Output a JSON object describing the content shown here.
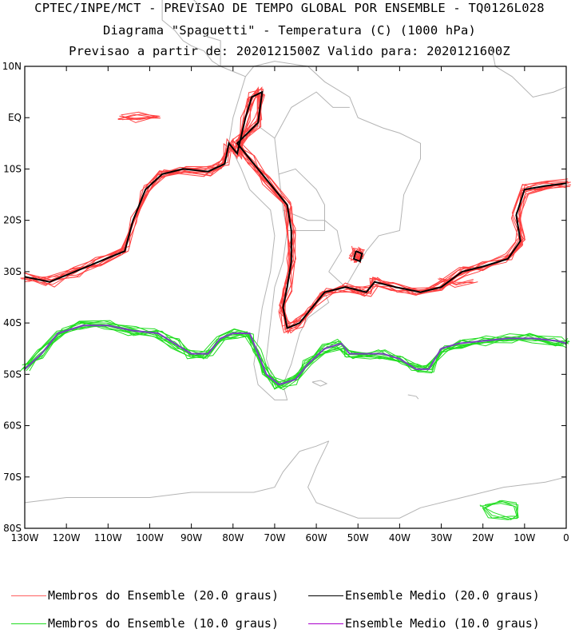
{
  "titles": {
    "line1": "CPTEC/INPE/MCT - PREVISAO DE TEMPO GLOBAL POR ENSEMBLE - TQ0126L028",
    "line2": "Diagrama \"Spaguetti\" - Temperatura (C) (1000 hPa)",
    "line3": "Previsao a partir de: 2020121500Z  Valido para: 2020121600Z"
  },
  "map": {
    "projection": "lat-lon",
    "lon_range": [
      -130,
      0
    ],
    "lat_range": [
      -80,
      10
    ],
    "lat_ticks": [
      {
        "value": 10,
        "label": "10N"
      },
      {
        "value": 0,
        "label": "EQ"
      },
      {
        "value": -10,
        "label": "10S"
      },
      {
        "value": -20,
        "label": "20S"
      },
      {
        "value": -30,
        "label": "30S"
      },
      {
        "value": -40,
        "label": "40S"
      },
      {
        "value": -50,
        "label": "50S"
      },
      {
        "value": -60,
        "label": "60S"
      },
      {
        "value": -70,
        "label": "70S"
      },
      {
        "value": -80,
        "label": "80S"
      }
    ],
    "lon_ticks": [
      {
        "value": -130,
        "label": "130W"
      },
      {
        "value": -120,
        "label": "120W"
      },
      {
        "value": -110,
        "label": "110W"
      },
      {
        "value": -100,
        "label": "100W"
      },
      {
        "value": -90,
        "label": "90W"
      },
      {
        "value": -80,
        "label": "80W"
      },
      {
        "value": -70,
        "label": "70W"
      },
      {
        "value": -60,
        "label": "60W"
      },
      {
        "value": -50,
        "label": "50W"
      },
      {
        "value": -40,
        "label": "40W"
      },
      {
        "value": -30,
        "label": "30W"
      },
      {
        "value": -20,
        "label": "20W"
      },
      {
        "value": -10,
        "label": "10W"
      },
      {
        "value": 0,
        "label": "0"
      }
    ],
    "coastline_color": "#b4b4b4",
    "contours": [
      {
        "name": "isotherm-20",
        "member_color": "#ff4040",
        "mean_color": "#000000",
        "members": 11,
        "segments": [
          [
            [
              -130,
              -31
            ],
            [
              -124,
              -32
            ],
            [
              -118,
              -30
            ],
            [
              -112,
              -28
            ],
            [
              -106,
              -26
            ],
            [
              -104,
              -20
            ],
            [
              -101,
              -14
            ],
            [
              -97,
              -11
            ],
            [
              -92,
              -10
            ],
            [
              -86,
              -10.5
            ],
            [
              -82,
              -9
            ],
            [
              -81,
              -5
            ],
            [
              -79,
              -7
            ],
            [
              -77,
              0
            ],
            [
              -75.5,
              4
            ],
            [
              -73,
              5
            ],
            [
              -74,
              -1
            ],
            [
              -79,
              -5
            ],
            [
              -76,
              -8
            ],
            [
              -72,
              -12
            ],
            [
              -67,
              -17
            ],
            [
              -66,
              -22
            ],
            [
              -66,
              -28
            ],
            [
              -67,
              -33
            ],
            [
              -68,
              -37
            ],
            [
              -67,
              -41
            ],
            [
              -64,
              -40
            ],
            [
              -61,
              -37
            ],
            [
              -58,
              -34
            ],
            [
              -53,
              -33
            ],
            [
              -48,
              -34
            ],
            [
              -46,
              -32
            ],
            [
              -41,
              -33
            ],
            [
              -35,
              -34
            ],
            [
              -30,
              -33
            ],
            [
              -25,
              -30
            ],
            [
              -20,
              -29
            ],
            [
              -14,
              -27.5
            ],
            [
              -11,
              -24
            ],
            [
              -12,
              -19
            ],
            [
              -10,
              -14
            ],
            [
              -5,
              -13.3
            ],
            [
              0,
              -12.8
            ]
          ],
          [
            [
              -50.5,
              -26
            ],
            [
              -49,
              -26.5
            ],
            [
              -49.5,
              -28
            ],
            [
              -51,
              -27.5
            ],
            [
              -50.5,
              -26
            ]
          ]
        ],
        "extra_member_segments": [
          [
            [
              -107,
              0
            ],
            [
              -103,
              0.5
            ],
            [
              -98,
              0
            ],
            [
              -103,
              -0.5
            ],
            [
              -107,
              0
            ]
          ],
          [
            [
              -30,
              -31
            ],
            [
              -26,
              -32.5
            ],
            [
              -22,
              -32
            ]
          ]
        ]
      },
      {
        "name": "isotherm-10",
        "member_color": "#22dd22",
        "mean_color": "#7a3fbf",
        "members": 11,
        "segments": [
          [
            [
              -130,
              -49
            ],
            [
              -126,
              -46
            ],
            [
              -122,
              -42
            ],
            [
              -116,
              -40.5
            ],
            [
              -110,
              -40.5
            ],
            [
              -104,
              -41.5
            ],
            [
              -98,
              -42
            ],
            [
              -94,
              -44
            ],
            [
              -90,
              -46
            ],
            [
              -86,
              -46
            ],
            [
              -83,
              -43
            ],
            [
              -80,
              -42
            ],
            [
              -76,
              -42
            ],
            [
              -74,
              -46
            ],
            [
              -72,
              -50
            ],
            [
              -69,
              -52
            ],
            [
              -65,
              -51
            ],
            [
              -62,
              -48
            ],
            [
              -58,
              -45
            ],
            [
              -54,
              -44
            ],
            [
              -52,
              -46
            ],
            [
              -48,
              -46
            ],
            [
              -44,
              -46
            ],
            [
              -40,
              -47
            ],
            [
              -36,
              -49
            ],
            [
              -33,
              -49
            ],
            [
              -30,
              -45
            ],
            [
              -26,
              -44
            ],
            [
              -20,
              -43.5
            ],
            [
              -14,
              -43
            ],
            [
              -8,
              -43
            ],
            [
              -2,
              -43.5
            ],
            [
              0,
              -44
            ]
          ]
        ],
        "extra_member_segments": [
          [
            [
              -20,
              -76
            ],
            [
              -16,
              -75
            ],
            [
              -12,
              -75.5
            ],
            [
              -11.5,
              -77.5
            ],
            [
              -14,
              -78
            ],
            [
              -18,
              -77.5
            ],
            [
              -20,
              -76
            ]
          ]
        ]
      }
    ]
  },
  "legend": [
    {
      "label": "Membros do Ensemble (20.0 graus)",
      "color": "#ff6060"
    },
    {
      "label": "Ensemble Medio (20.0 graus)",
      "color": "#000000"
    },
    {
      "label": "Membros do Ensemble (10.0 graus)",
      "color": "#22dd22"
    },
    {
      "label": "Ensemble Medio (10.0 graus)",
      "color": "#aa00cc"
    }
  ]
}
